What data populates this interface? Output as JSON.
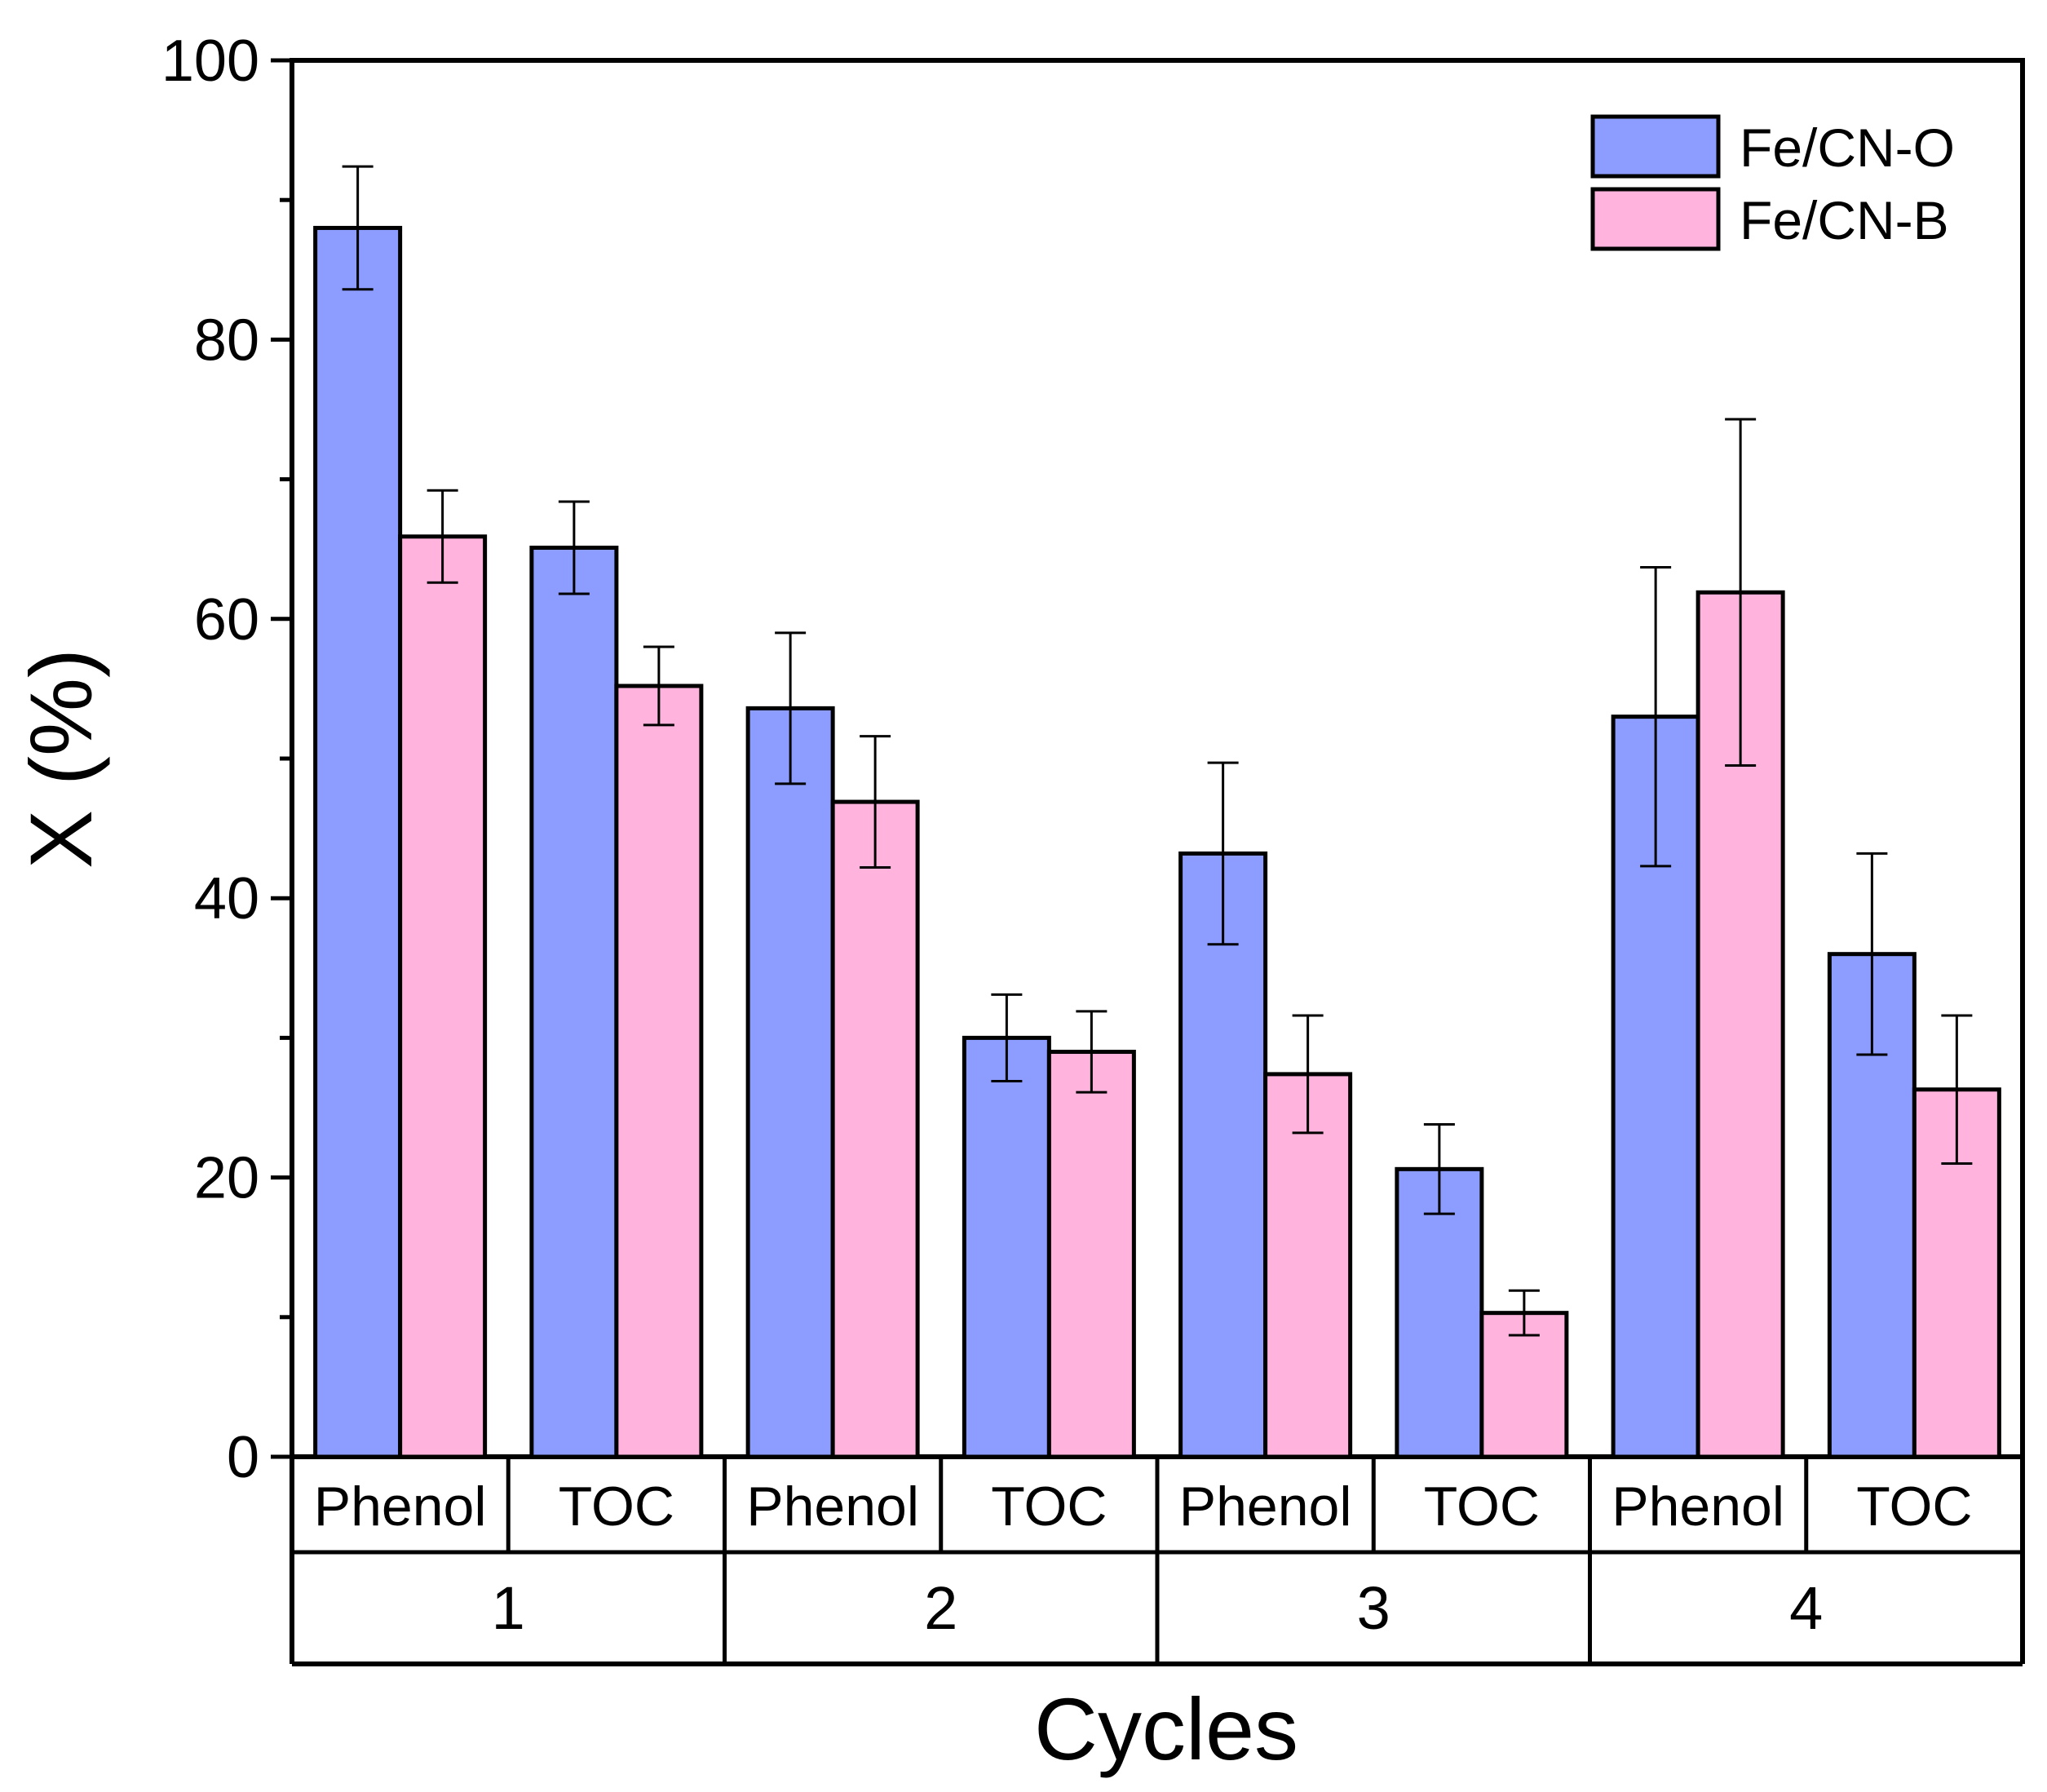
{
  "chart_data": {
    "type": "bar",
    "title": "",
    "xlabel": "Cycles",
    "ylabel": "X (%)",
    "ylim": [
      0,
      100
    ],
    "yticks": [
      "0",
      "20",
      "40",
      "60",
      "80",
      "100"
    ],
    "ytick_values": [
      0,
      20,
      40,
      60,
      80,
      100
    ],
    "groups": [
      "1",
      "2",
      "3",
      "4"
    ],
    "categories": [
      "Phenol",
      "TOC",
      "Phenol",
      "TOC",
      "Phenol",
      "TOC",
      "Phenol",
      "TOC"
    ],
    "series": [
      {
        "name": "Fe/CN-O",
        "color": "#8c9dff",
        "values": [
          88.0,
          65.1,
          53.6,
          30.0,
          43.2,
          20.6,
          53.0,
          36.0
        ],
        "errors": [
          4.4,
          3.3,
          5.4,
          3.1,
          6.5,
          3.2,
          10.7,
          7.2
        ]
      },
      {
        "name": "Fe/CN-B",
        "color": "#ffb3dd",
        "values": [
          65.9,
          55.2,
          46.9,
          29.0,
          27.4,
          10.3,
          61.9,
          26.3
        ],
        "errors": [
          3.3,
          2.8,
          4.7,
          2.9,
          4.2,
          1.6,
          12.4,
          5.3
        ]
      }
    ],
    "legend": {
      "position": "top-right"
    },
    "grid": false
  }
}
